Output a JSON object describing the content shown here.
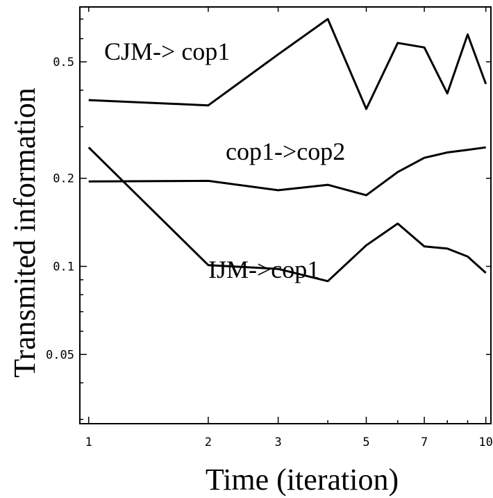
{
  "chart_data": {
    "type": "line",
    "xscale": "log",
    "yscale": "log",
    "xlabel": "Time (iteration)",
    "ylabel": "Transmited information",
    "xlim": [
      0.95,
      10.3
    ],
    "ylim": [
      0.029,
      0.77
    ],
    "x_ticks": [
      1,
      2,
      3,
      5,
      7,
      10
    ],
    "y_ticks": [
      0.05,
      0.1,
      0.2,
      0.5
    ],
    "grid": false,
    "legend": "none",
    "series": [
      {
        "name": "CJM-> cop1",
        "x": [
          1,
          2,
          3,
          4,
          5,
          6,
          7,
          8,
          9,
          10
        ],
        "y": [
          0.37,
          0.355,
          0.53,
          0.7,
          0.345,
          0.58,
          0.56,
          0.39,
          0.62,
          0.42
        ]
      },
      {
        "name": "cop1->cop2",
        "x": [
          1,
          2,
          3,
          4,
          5,
          6,
          7,
          8,
          9,
          10
        ],
        "y": [
          0.195,
          0.196,
          0.182,
          0.19,
          0.175,
          0.21,
          0.235,
          0.245,
          0.25,
          0.255
        ]
      },
      {
        "name": "IJM->cop1",
        "x": [
          1,
          2,
          3,
          4,
          5,
          6,
          7,
          8,
          9,
          10
        ],
        "y": [
          0.255,
          0.101,
          0.098,
          0.089,
          0.118,
          0.14,
          0.117,
          0.115,
          0.108,
          0.095
        ]
      }
    ]
  }
}
